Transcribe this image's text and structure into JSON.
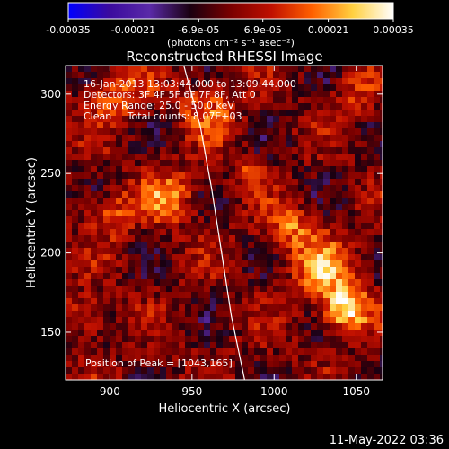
{
  "chart_data": {
    "type": "heatmap",
    "title": "Reconstructed RHESSI Image",
    "xlabel": "Heliocentric X (arcsec)",
    "ylabel": "Heliocentric Y (arcsec)",
    "xlim": [
      873,
      1066
    ],
    "ylim": [
      120,
      318
    ],
    "x_ticks": [
      900,
      950,
      1000,
      1050
    ],
    "y_ticks": [
      150,
      200,
      250,
      300
    ],
    "colorbar": {
      "range": [
        -0.00035,
        0.00035
      ],
      "tick_values": [
        -0.00035,
        -0.00021,
        -6.9e-05,
        6.9e-05,
        0.00021,
        0.00035
      ],
      "tick_labels": [
        "-0.00035",
        "-0.00021",
        "-6.9e-05",
        "6.9e-05",
        "0.00021",
        "0.00035"
      ],
      "unit_label": "(photons cm⁻² s⁻¹ asec⁻²)"
    },
    "colormap": [
      "#0000ff",
      "#3a0a9e",
      "#5a2aa8",
      "#1a0010",
      "#7a0000",
      "#c01000",
      "#ff6000",
      "#ffd040",
      "#ffffff"
    ],
    "annotations": [
      "16-Jan-2013 13:03:44.000 to 13:09:44.000",
      "Detectors: 3F 4F 5F 6F 7F 8F, Att 0",
      "Energy Range: 25.0 - 50.0 keV",
      "Clean     Total counts: 8.07E+03"
    ],
    "peak_label": "Position of Peak = [1043,165]",
    "peak": [
      1043,
      165
    ],
    "limb_curve": [
      [
        945,
        318
      ],
      [
        955,
        280
      ],
      [
        962,
        240
      ],
      [
        968,
        200
      ],
      [
        974,
        160
      ],
      [
        982,
        120
      ]
    ],
    "hot_regions": [
      {
        "x": 1043,
        "y": 165,
        "r": 14,
        "v": 0.00035
      },
      {
        "x": 1030,
        "y": 190,
        "r": 18,
        "v": 0.00022
      },
      {
        "x": 1010,
        "y": 215,
        "r": 15,
        "v": 0.00018
      },
      {
        "x": 935,
        "y": 235,
        "r": 16,
        "v": 0.0002
      },
      {
        "x": 900,
        "y": 225,
        "r": 14,
        "v": 0.00016
      },
      {
        "x": 885,
        "y": 160,
        "r": 14,
        "v": 0.00015
      },
      {
        "x": 905,
        "y": 300,
        "r": 16,
        "v": 0.00018
      },
      {
        "x": 960,
        "y": 290,
        "r": 18,
        "v": 0.00014
      },
      {
        "x": 1050,
        "y": 300,
        "r": 12,
        "v": 0.00012
      },
      {
        "x": 985,
        "y": 250,
        "r": 10,
        "v": 0.00012
      }
    ]
  },
  "footer_date": "11-May-2022 03:36"
}
